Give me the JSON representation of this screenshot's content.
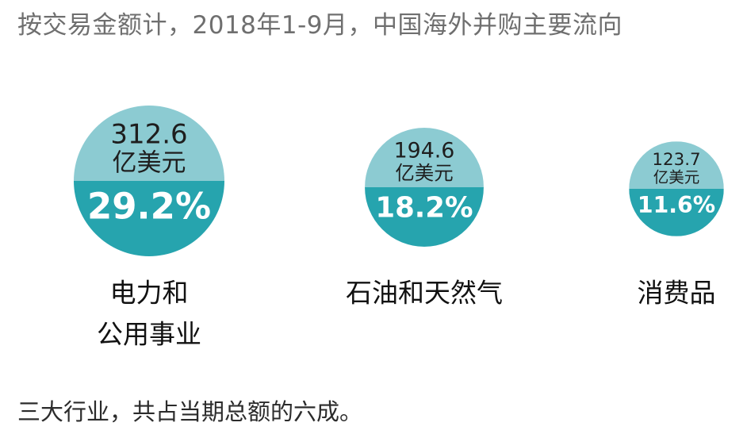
{
  "title": "按交易金额计，2018年1-9月，中国海外并购主要流向",
  "footnote": "三大行业，共占当期总额的六成。",
  "colors": {
    "top_half": "#8ccbd2",
    "bottom_half": "#26a4ae",
    "top_text": "#1e1e1e",
    "bottom_text": "#ffffff",
    "label_text": "#111111"
  },
  "chart_data": {
    "type": "bubble",
    "unit": "亿美元",
    "categories": [
      {
        "label_lines": [
          "电力和",
          "公用事业"
        ],
        "value": 312.6,
        "value_text": "312.6",
        "unit": "亿美元",
        "share": 29.2,
        "share_text": "29.2%"
      },
      {
        "label_lines": [
          "石油和天然气"
        ],
        "value": 194.6,
        "value_text": "194.6",
        "unit": "亿美元",
        "share": 18.2,
        "share_text": "18.2%"
      },
      {
        "label_lines": [
          "消费品"
        ],
        "value": 123.7,
        "value_text": "123.7",
        "unit": "亿美元",
        "share": 11.6,
        "share_text": "11.6%"
      }
    ]
  }
}
